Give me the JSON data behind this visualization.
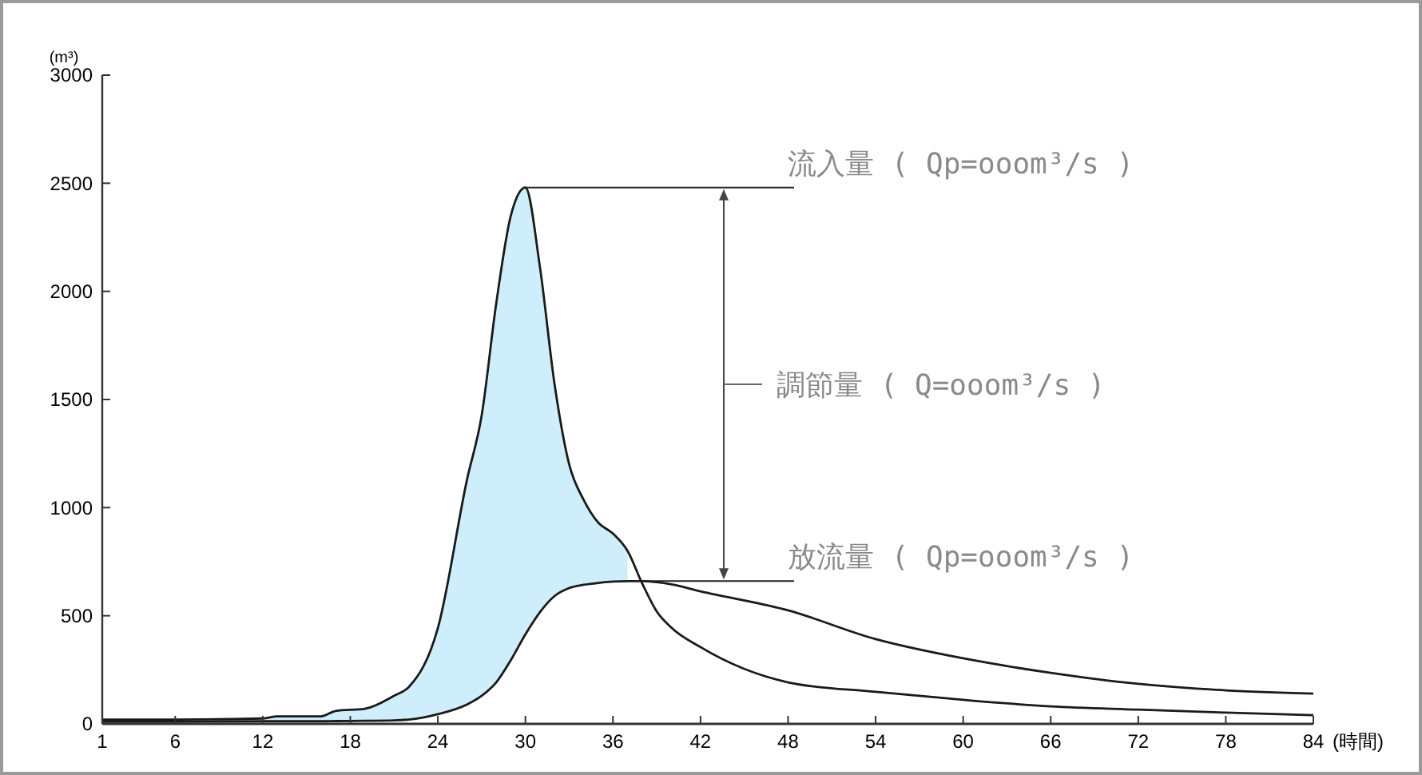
{
  "chart_data": {
    "type": "line",
    "ylabel": "(m³)",
    "xlabel": "(時間)",
    "x": [
      1,
      6,
      12,
      13,
      16,
      17,
      19,
      21,
      22,
      24,
      26,
      27,
      28,
      29,
      30,
      31,
      32,
      33,
      34,
      35,
      36,
      37,
      38,
      39,
      40,
      42,
      48,
      54,
      60,
      66,
      72,
      78,
      84
    ],
    "series": [
      {
        "color": "#1a1a1a",
        "values": [
          20,
          20,
          25,
          35,
          35,
          60,
          70,
          130,
          170,
          443,
          1130,
          1425,
          1944,
          2350,
          2480,
          2110,
          1570,
          1200,
          1035,
          930,
          880,
          800,
          650,
          520,
          445,
          355,
          192,
          148,
          111,
          81,
          66,
          52,
          40
        ],
        "lower": [
          null,
          null,
          12,
          12,
          12,
          13,
          14,
          16,
          20,
          45,
          90,
          130,
          192,
          295,
          414,
          517,
          591,
          628,
          643,
          652,
          658,
          660,
          null,
          null,
          null,
          null,
          null,
          null,
          null,
          null,
          null,
          null,
          null
        ],
        "upper": [
          null,
          null,
          25,
          35,
          35,
          60,
          70,
          130,
          170,
          443,
          1130,
          1425,
          1944,
          2350,
          2480,
          2110,
          1570,
          1200,
          1035,
          930,
          880,
          800,
          null,
          null,
          null,
          null,
          null,
          null,
          null,
          null,
          null,
          null,
          null
        ]
      },
      {
        "color": "#1a1a1a",
        "values": [
          10,
          10,
          12,
          12,
          12,
          13,
          14,
          16,
          20,
          45,
          90,
          130,
          192,
          295,
          414,
          517,
          591,
          628,
          643,
          652,
          658,
          660,
          660,
          655,
          645,
          613,
          525,
          392,
          303,
          236,
          185,
          155,
          140
        ]
      }
    ],
    "xlim": [
      1,
      84
    ],
    "ylim": [
      0,
      3000
    ],
    "xticks": [
      1,
      6,
      12,
      18,
      24,
      30,
      36,
      42,
      48,
      54,
      60,
      66,
      72,
      78,
      84
    ],
    "yticks": [
      0,
      500,
      1000,
      1500,
      2000,
      2500,
      3000
    ],
    "grid": false,
    "marker": "none",
    "line_style": "solid",
    "annotations": [
      {
        "text": "流入量 ( Qp=ooom³/s )",
        "x": 30,
        "y": 2480
      },
      "調節量 ( Q=ooom³/s )",
      {
        "text": "放流量 ( Qp=ooom³/s )",
        "x": 38,
        "y": 660
      }
    ]
  }
}
